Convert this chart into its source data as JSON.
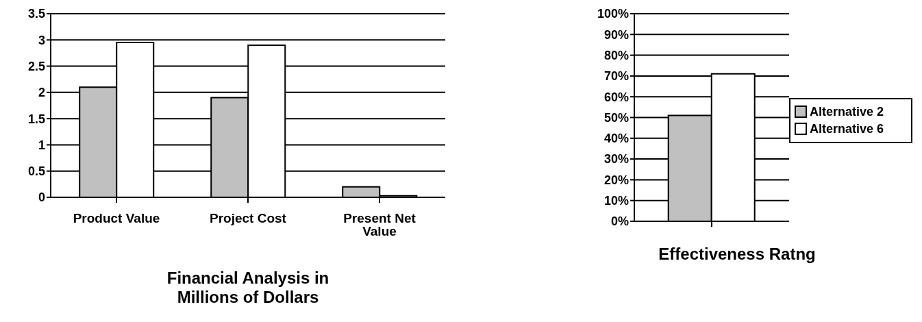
{
  "chart_data": [
    {
      "type": "bar",
      "title": "Financial Analysis in Millions of Dollars",
      "categories": [
        "Product Value",
        "Project Cost",
        "Present Net Value"
      ],
      "series": [
        {
          "color": "#c0c0c0",
          "values": [
            2.1,
            1.9,
            0.2
          ]
        },
        {
          "color": "#ffffff",
          "values": [
            2.95,
            2.9,
            0.03
          ]
        }
      ],
      "ylim": [
        0,
        3.5
      ],
      "yticks": [
        0,
        0.5,
        1,
        1.5,
        2,
        2.5,
        3,
        3.5
      ],
      "grid": "y",
      "legend": false
    },
    {
      "type": "bar",
      "title": "Effectiveness Ratng",
      "categories": [
        null
      ],
      "series": [
        {
          "name": "Alternative 2",
          "color": "#c0c0c0",
          "values": [
            51
          ]
        },
        {
          "name": "Alternative 6",
          "color": "#ffffff",
          "values": [
            71
          ]
        }
      ],
      "ylim": [
        0,
        100
      ],
      "yticks": [
        {
          "value": 0,
          "label": "0%"
        },
        {
          "value": 10,
          "label": "10%"
        },
        {
          "value": 20,
          "label": "20%"
        },
        {
          "value": 30,
          "label": "30%"
        },
        {
          "value": 40,
          "label": "40%"
        },
        {
          "value": 50,
          "label": "50%"
        },
        {
          "value": 60,
          "label": "60%"
        },
        {
          "value": 70,
          "label": "70%"
        },
        {
          "value": 80,
          "label": "80%"
        },
        {
          "value": 90,
          "label": "90%"
        },
        {
          "value": 100,
          "label": "100%"
        }
      ],
      "grid": "y",
      "legend": "right"
    }
  ]
}
